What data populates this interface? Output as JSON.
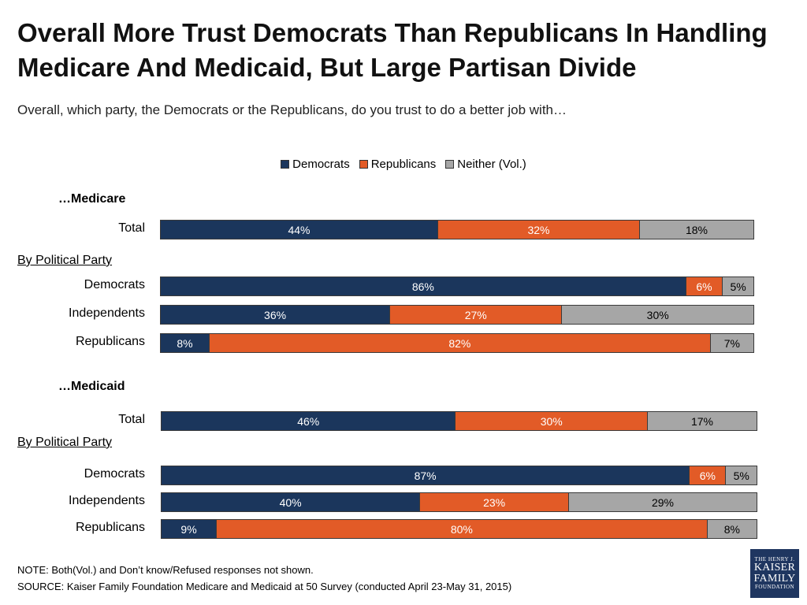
{
  "title": "Overall More Trust Democrats Than Republicans In Handling Medicare And Medicaid, But Large Partisan Divide",
  "subtitle": "Overall, which party, the Democrats or the Republicans, do you trust to do a better job with…",
  "note": "NOTE: Both(Vol.) and Don’t know/Refused responses not shown.",
  "source": "SOURCE: Kaiser Family Foundation Medicare and Medicaid at 50 Survey (conducted April 23-May 31, 2015)",
  "logo": {
    "line1": "THE HENRY J.",
    "line2": "KAISER",
    "line3": "FAMILY",
    "line4": "FOUNDATION"
  },
  "colors": {
    "democrats": "#1b365c",
    "republicans": "#e25b27",
    "neither": "#a6a6a6"
  },
  "chart_data": {
    "type": "bar",
    "orientation": "horizontal",
    "stacked": true,
    "legend": [
      "Democrats",
      "Republicans",
      "Neither (Vol.)"
    ],
    "legend_placement": "top",
    "series": [
      {
        "name": "Democrats",
        "values": [
          44,
          86,
          36,
          8,
          46,
          87,
          40,
          9
        ]
      },
      {
        "name": "Republicans",
        "values": [
          32,
          6,
          27,
          82,
          30,
          6,
          23,
          80
        ]
      },
      {
        "name": "Neither (Vol.)",
        "values": [
          18,
          5,
          30,
          7,
          17,
          5,
          29,
          8
        ]
      }
    ],
    "sections": [
      {
        "title": "…Medicare",
        "rows": [
          {
            "label": "Total",
            "values": [
              44,
              32,
              18
            ]
          },
          {
            "group": "By Political Party"
          },
          {
            "label": "Democrats",
            "values": [
              86,
              6,
              5
            ]
          },
          {
            "label": "Independents",
            "values": [
              36,
              27,
              30
            ]
          },
          {
            "label": "Republicans",
            "values": [
              8,
              82,
              7
            ]
          }
        ]
      },
      {
        "title": "…Medicaid",
        "rows": [
          {
            "label": "Total",
            "values": [
              46,
              30,
              17
            ]
          },
          {
            "group": "By Political Party"
          },
          {
            "label": "Democrats",
            "values": [
              87,
              6,
              5
            ]
          },
          {
            "label": "Independents",
            "values": [
              40,
              23,
              29
            ]
          },
          {
            "label": "Republicans",
            "values": [
              9,
              80,
              8
            ]
          }
        ]
      }
    ]
  }
}
